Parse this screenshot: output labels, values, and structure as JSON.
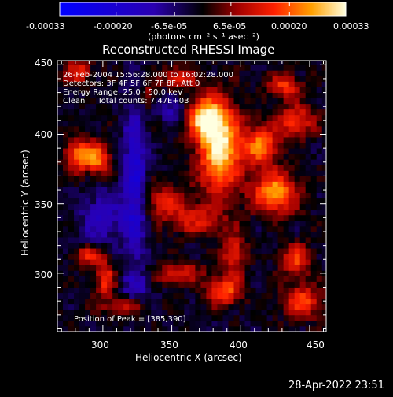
{
  "chart_data": {
    "type": "heatmap",
    "title": "Reconstructed RHESSI Image",
    "xlabel": "Heliocentric X (arcsec)",
    "ylabel": "Heliocentric Y (arcsec)",
    "xlim": [
      267,
      462
    ],
    "ylim": [
      258,
      453
    ],
    "xticks": [
      300,
      350,
      400,
      450
    ],
    "yticks": [
      300,
      350,
      400,
      450
    ],
    "colorbar": {
      "range": [
        -0.00033,
        0.00033
      ],
      "tick_labels": [
        "-0.00033",
        "-0.00020",
        "-6.5e-05",
        "6.5e-05",
        "0.00020",
        "0.00033"
      ],
      "tick_values": [
        -0.00033,
        -0.0002,
        -6.5e-05,
        6.5e-05,
        0.0002,
        0.00033
      ],
      "unit_label": "(photons cm⁻² s⁻¹ asec⁻²)"
    },
    "annotations": [
      "26-Feb-2004 15:56:28.000 to 16:02:28.000",
      "Detectors: 3F 4F 5F 6F 7F 8F, Att 0",
      "Energy Range: 25.0 - 50.0 keV",
      "Clean     Total counts: 7.47E+03"
    ],
    "peak_label": "Position of Peak = [385,390]",
    "peak": [
      385,
      390
    ],
    "features": [
      {
        "x": 385,
        "y": 390,
        "amp": 1.0,
        "sx": 11,
        "sy": 22
      },
      {
        "x": 374,
        "y": 412,
        "amp": 0.8,
        "sx": 9,
        "sy": 10
      },
      {
        "x": 425,
        "y": 358,
        "amp": 0.85,
        "sx": 11,
        "sy": 10
      },
      {
        "x": 415,
        "y": 392,
        "amp": 0.7,
        "sx": 9,
        "sy": 10
      },
      {
        "x": 440,
        "y": 410,
        "amp": 0.55,
        "sx": 10,
        "sy": 8
      },
      {
        "x": 283,
        "y": 385,
        "amp": 0.7,
        "sx": 7,
        "sy": 8
      },
      {
        "x": 297,
        "y": 383,
        "amp": 0.65,
        "sx": 6,
        "sy": 8
      },
      {
        "x": 345,
        "y": 352,
        "amp": 0.45,
        "sx": 12,
        "sy": 8
      },
      {
        "x": 368,
        "y": 338,
        "amp": 0.4,
        "sx": 14,
        "sy": 8
      },
      {
        "x": 290,
        "y": 313,
        "amp": 0.5,
        "sx": 8,
        "sy": 5
      },
      {
        "x": 302,
        "y": 296,
        "amp": 0.55,
        "sx": 5,
        "sy": 9
      },
      {
        "x": 315,
        "y": 276,
        "amp": 0.35,
        "sx": 12,
        "sy": 5
      },
      {
        "x": 388,
        "y": 287,
        "amp": 0.65,
        "sx": 9,
        "sy": 7
      },
      {
        "x": 355,
        "y": 300,
        "amp": 0.5,
        "sx": 12,
        "sy": 5
      },
      {
        "x": 395,
        "y": 314,
        "amp": 0.5,
        "sx": 6,
        "sy": 11
      },
      {
        "x": 440,
        "y": 310,
        "amp": 0.55,
        "sx": 8,
        "sy": 8
      },
      {
        "x": 445,
        "y": 280,
        "amp": 0.6,
        "sx": 10,
        "sy": 8
      },
      {
        "x": 432,
        "y": 435,
        "amp": 0.55,
        "sx": 8,
        "sy": 6
      },
      {
        "x": 355,
        "y": 440,
        "amp": 0.45,
        "sx": 9,
        "sy": 6
      },
      {
        "x": 333,
        "y": 428,
        "amp": 0.35,
        "sx": 5,
        "sy": 6
      },
      {
        "x": 282,
        "y": 445,
        "amp": 0.5,
        "sx": 7,
        "sy": 6
      },
      {
        "x": 323,
        "y": 365,
        "amp": -0.55,
        "sx": 6,
        "sy": 40
      },
      {
        "x": 300,
        "y": 340,
        "amp": -0.35,
        "sx": 12,
        "sy": 14
      },
      {
        "x": 350,
        "y": 420,
        "amp": -0.3,
        "sx": 8,
        "sy": 8
      },
      {
        "x": 325,
        "y": 290,
        "amp": -0.25,
        "sx": 8,
        "sy": 8
      }
    ]
  },
  "footer": {
    "timestamp": "28-Apr-2022 23:51"
  }
}
